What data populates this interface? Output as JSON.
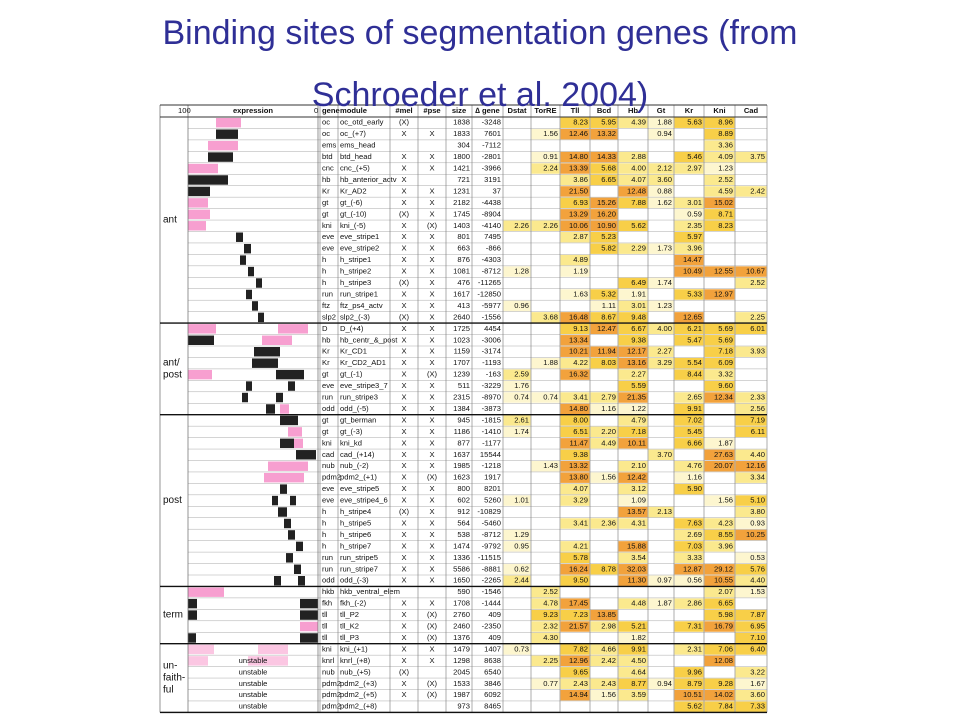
{
  "title": "Binding sites of segmentation genes (from Schroeder et al. 2004)",
  "expression_header": {
    "max": "100",
    "label": "expression",
    "min": "0"
  },
  "columns": [
    "gene",
    "module",
    "#mel",
    "#pse",
    "size",
    "∆ gene",
    "Dstat",
    "TorRE",
    "Tll",
    "Bcd",
    "Hb",
    "Gt",
    "Kr",
    "Kni",
    "Cad"
  ],
  "groups": [
    {
      "label": [
        "ant"
      ],
      "rows": [
        [
          "oc",
          "oc_otd_early",
          "(X)",
          null,
          "1838",
          "-3248",
          null,
          null,
          "8.23",
          "5.95",
          "4.39",
          "1.88",
          "5.63",
          "8.96",
          null
        ],
        [
          "oc",
          "oc_(+7)",
          "X",
          "X",
          "1833",
          "7601",
          null,
          "1.56",
          "12.46",
          "13.32",
          null,
          "0.94",
          null,
          "8.89",
          null
        ],
        [
          "ems",
          "ems_head",
          null,
          null,
          "304",
          "-7112",
          null,
          null,
          null,
          null,
          null,
          null,
          null,
          "3.36",
          null
        ],
        [
          "btd",
          "btd_head",
          "X",
          "X",
          "1800",
          "-2801",
          null,
          "0.91",
          "14.80",
          "14.33",
          "2.88",
          null,
          "5.46",
          "4.09",
          "3.75"
        ],
        [
          "cnc",
          "cnc_(+5)",
          "X",
          "X",
          "1421",
          "-3966",
          null,
          "2.24",
          "13.39",
          "5.68",
          "4.00",
          "2.12",
          "2.97",
          "1.23",
          null
        ],
        [
          "hb",
          "hb_anterior_actv",
          "X",
          null,
          "721",
          "3191",
          null,
          null,
          "3.86",
          "6.65",
          "4.07",
          "3.60",
          null,
          "2.52",
          null
        ],
        [
          "Kr",
          "Kr_AD2",
          "X",
          "X",
          "1231",
          "37",
          null,
          null,
          "21.50",
          null,
          "12.48",
          "0.88",
          null,
          "4.59",
          "2.42"
        ],
        [
          "gt",
          "gt_(-6)",
          "X",
          "X",
          "2182",
          "-4438",
          null,
          null,
          "6.93",
          "15.26",
          "7.88",
          "1.62",
          "3.01",
          "15.02",
          null
        ],
        [
          "gt",
          "gt_(-10)",
          "(X)",
          "X",
          "1745",
          "-8904",
          null,
          null,
          "13.29",
          "16.20",
          null,
          null,
          "0.59",
          "8.71",
          null
        ],
        [
          "kni",
          "kni_(-5)",
          "X",
          "(X)",
          "1403",
          "-4140",
          "2.26",
          "2.26",
          "10.06",
          "10.90",
          "5.62",
          null,
          "2.35",
          "8.23",
          null
        ],
        [
          "eve",
          "eve_stripe1",
          "X",
          "X",
          "801",
          "7495",
          null,
          null,
          "2.87",
          "5.23",
          null,
          null,
          "5.97",
          null,
          null
        ],
        [
          "eve",
          "eve_stripe2",
          "X",
          "X",
          "663",
          "-866",
          null,
          null,
          null,
          "5.82",
          "2.29",
          "1.73",
          "3.96",
          null,
          null
        ],
        [
          "h",
          "h_stripe1",
          "X",
          "X",
          "876",
          "-4303",
          null,
          null,
          "4.89",
          null,
          null,
          null,
          "14.47",
          null,
          null
        ],
        [
          "h",
          "h_stripe2",
          "X",
          "X",
          "1081",
          "-8712",
          "1.28",
          null,
          "1.19",
          null,
          null,
          null,
          "10.49",
          "12.55",
          "10.67"
        ],
        [
          "h",
          "h_stripe3",
          "(X)",
          "X",
          "476",
          "-11265",
          null,
          null,
          null,
          null,
          "6.49",
          "1.74",
          null,
          null,
          "2.52"
        ],
        [
          "run",
          "run_stripe1",
          "X",
          "X",
          "1617",
          "-12850",
          null,
          null,
          "1.63",
          "5.32",
          "1.91",
          null,
          "5.33",
          "12.97",
          null
        ],
        [
          "ftz",
          "ftz_ps4_actv",
          "X",
          "X",
          "413",
          "-5977",
          "0.96",
          null,
          null,
          "1.11",
          "3.01",
          "1.23",
          null,
          null,
          null
        ],
        [
          "slp2",
          "slp2_(-3)",
          "(X)",
          "X",
          "2640",
          "-1556",
          null,
          "3.68",
          "16.48",
          "8.67",
          "9.48",
          null,
          "12.65",
          null,
          "2.25"
        ]
      ]
    },
    {
      "label": [
        "ant/",
        "post"
      ],
      "rows": [
        [
          "D",
          "D_(+4)",
          "X",
          "X",
          "1725",
          "4454",
          null,
          null,
          "9.13",
          "12.47",
          "6.67",
          "4.00",
          "6.21",
          "5.69",
          "6.01"
        ],
        [
          "hb",
          "hb_centr_&_post",
          "X",
          "X",
          "1023",
          "-3006",
          null,
          null,
          "13.34",
          null,
          "9.38",
          null,
          "5.47",
          "5.69",
          null
        ],
        [
          "Kr",
          "Kr_CD1",
          "X",
          "X",
          "1159",
          "-3174",
          null,
          null,
          "10.21",
          "11.94",
          "12.17",
          "2.27",
          null,
          "7.18",
          "3.93"
        ],
        [
          "Kr",
          "Kr_CD2_AD1",
          "X",
          "X",
          "1707",
          "-1193",
          null,
          "1.88",
          "4.22",
          "8.03",
          "13.16",
          "3.29",
          "5.54",
          "6.09",
          null
        ],
        [
          "gt",
          "gt_(-1)",
          "X",
          "(X)",
          "1239",
          "-163",
          "2.59",
          null,
          "16.32",
          null,
          "2.27",
          null,
          "8.44",
          "3.32",
          null
        ],
        [
          "eve",
          "eve_stripe3_7",
          "X",
          "X",
          "511",
          "-3229",
          "1.76",
          null,
          null,
          null,
          "5.59",
          null,
          null,
          "9.60",
          null
        ],
        [
          "run",
          "run_stripe3",
          "X",
          "X",
          "2315",
          "-8970",
          "0.74",
          "0.74",
          "3.41",
          "2.79",
          "21.35",
          null,
          "2.65",
          "12.34",
          "2.33"
        ],
        [
          "odd",
          "odd_(-5)",
          "X",
          "X",
          "1384",
          "-3873",
          null,
          null,
          "14.80",
          "1.16",
          "1.22",
          null,
          "9.91",
          null,
          "2.56"
        ]
      ]
    },
    {
      "label": [
        "post"
      ],
      "rows": [
        [
          "gt",
          "gt_berman",
          "X",
          "X",
          "945",
          "-1815",
          "2.61",
          null,
          "8.00",
          null,
          "4.79",
          null,
          "7.02",
          null,
          "7.19"
        ],
        [
          "gt",
          "gt_(-3)",
          "X",
          "X",
          "1186",
          "-1410",
          "1.74",
          null,
          "6.51",
          "2.20",
          "7.18",
          null,
          "5.45",
          null,
          "6.11"
        ],
        [
          "kni",
          "kni_kd",
          "X",
          "X",
          "877",
          "-1177",
          null,
          null,
          "11.47",
          "4.49",
          "10.11",
          null,
          "6.66",
          "1.87",
          null
        ],
        [
          "cad",
          "cad_(+14)",
          "X",
          "X",
          "1637",
          "15544",
          null,
          null,
          "9.38",
          null,
          null,
          "3.70",
          null,
          "27.63",
          "4.40"
        ],
        [
          "nub",
          "nub_(-2)",
          "X",
          "X",
          "1985",
          "-1218",
          null,
          "1.43",
          "13.32",
          null,
          "2.10",
          null,
          "4.76",
          "20.07",
          "12.16"
        ],
        [
          "pdm2",
          "pdm2_(+1)",
          "X",
          "(X)",
          "1623",
          "1917",
          null,
          null,
          "13.80",
          "1.56",
          "12.42",
          null,
          "1.16",
          null,
          "3.34"
        ],
        [
          "eve",
          "eve_stripe5",
          "X",
          "X",
          "800",
          "8201",
          null,
          null,
          "4.07",
          null,
          "3.12",
          null,
          "5.90",
          null,
          null
        ],
        [
          "eve",
          "eve_stripe4_6",
          "X",
          "X",
          "602",
          "5260",
          "1.01",
          null,
          "3.29",
          null,
          "1.09",
          null,
          null,
          "1.56",
          "5.10"
        ],
        [
          "h",
          "h_stripe4",
          "(X)",
          "X",
          "912",
          "-10829",
          null,
          null,
          null,
          null,
          "13.57",
          "2.13",
          null,
          null,
          "3.80"
        ],
        [
          "h",
          "h_stripe5",
          "X",
          "X",
          "564",
          "-5460",
          null,
          null,
          "3.41",
          "2.36",
          "4.31",
          null,
          "7.63",
          "4.23",
          "0.93"
        ],
        [
          "h",
          "h_stripe6",
          "X",
          "X",
          "538",
          "-8712",
          "1.29",
          null,
          null,
          null,
          null,
          null,
          "2.69",
          "8.55",
          "10.25"
        ],
        [
          "h",
          "h_stripe7",
          "X",
          "X",
          "1474",
          "-9792",
          "0.95",
          null,
          "4.21",
          null,
          "15.88",
          null,
          "7.03",
          "3.96",
          null
        ],
        [
          "run",
          "run_stripe5",
          "X",
          "X",
          "1336",
          "-11515",
          null,
          null,
          "5.78",
          null,
          "3.54",
          null,
          "3.33",
          null,
          "0.53"
        ],
        [
          "run",
          "run_stripe7",
          "X",
          "X",
          "5586",
          "-8881",
          "0.62",
          null,
          "16.24",
          "8.78",
          "32.03",
          null,
          "12.87",
          "29.12",
          "5.76"
        ],
        [
          "odd",
          "odd_(-3)",
          "X",
          "X",
          "1650",
          "-2265",
          "2.44",
          null,
          "9.50",
          null,
          "11.30",
          "0.97",
          "0.56",
          "10.55",
          "4.40"
        ]
      ]
    },
    {
      "label": [
        "term"
      ],
      "rows": [
        [
          "hkb",
          "hkb_ventral_elem",
          null,
          null,
          "590",
          "-1546",
          null,
          "2.52",
          null,
          null,
          null,
          null,
          null,
          "2.07",
          "1.53"
        ],
        [
          "fkh",
          "fkh_(-2)",
          "X",
          "X",
          "1708",
          "-1444",
          null,
          "4.78",
          "17.45",
          null,
          "4.48",
          "1.87",
          "2.86",
          "6.65",
          null
        ],
        [
          "tll",
          "tll_P2",
          "X",
          "(X)",
          "2760",
          "409",
          null,
          "9.23",
          "7.23",
          "13.85",
          null,
          null,
          null,
          "5.98",
          "7.87"
        ],
        [
          "tll",
          "tll_K2",
          "X",
          "(X)",
          "2460",
          "-2350",
          null,
          "2.32",
          "21.57",
          "2.98",
          "5.21",
          null,
          "7.31",
          "16.79",
          "6.95"
        ],
        [
          "tll",
          "tll_P3",
          "X",
          "(X)",
          "1376",
          "409",
          null,
          "4.30",
          null,
          null,
          "1.82",
          null,
          null,
          null,
          "7.10"
        ]
      ]
    },
    {
      "label": [
        "un-",
        "faith-",
        "ful"
      ],
      "rows": [
        [
          "kni",
          "kni_(+1)",
          "X",
          "X",
          "1479",
          "1407",
          "0.73",
          null,
          "7.82",
          "4.66",
          "9.91",
          null,
          "2.31",
          "7.06",
          "6.40"
        ],
        [
          "knrl",
          "knrl_(+8)",
          "X",
          "X",
          "1298",
          "8638",
          null,
          "2.25",
          "12.96",
          "2.42",
          "4.50",
          null,
          null,
          "12.08",
          null
        ],
        [
          "nub",
          "nub_(+5)",
          "(X)",
          null,
          "2045",
          "6540",
          null,
          null,
          "9.65",
          null,
          "4.64",
          null,
          "9.96",
          null,
          "3.22"
        ],
        [
          "pdm2",
          "pdm2_(+3)",
          "X",
          "(X)",
          "1533",
          "3846",
          null,
          "0.77",
          "2.43",
          "2.43",
          "8.77",
          "0.94",
          "8.79",
          "9.28",
          "1.67"
        ],
        [
          "pdm2",
          "pdm2_(+5)",
          "X",
          "(X)",
          "1987",
          "6092",
          null,
          null,
          "14.94",
          "1.56",
          "3.59",
          null,
          "10.51",
          "14.02",
          "3.60"
        ],
        [
          "pdm2",
          "pdm2_(+8)",
          null,
          null,
          "973",
          "8465",
          null,
          null,
          null,
          null,
          null,
          null,
          "5.62",
          "7.84",
          "7.33"
        ]
      ]
    }
  ],
  "unstable": [
    "unstable",
    "unstable",
    "unstable",
    "unstable",
    "unstable"
  ]
}
